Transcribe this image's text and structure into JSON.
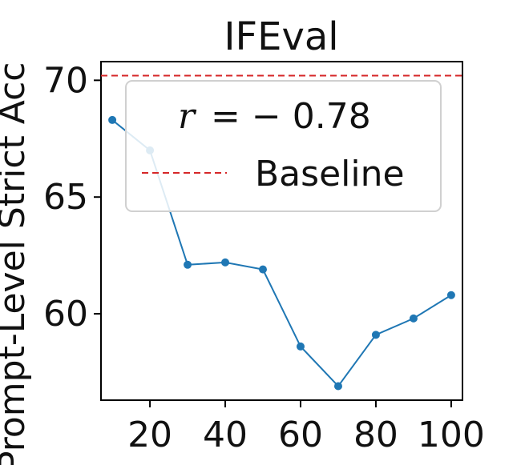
{
  "chart_data": {
    "type": "line",
    "title": "IFEval",
    "xlabel": "",
    "ylabel": "Prompt-Level Strict Acc",
    "x": [
      10,
      20,
      30,
      40,
      50,
      60,
      70,
      80,
      90,
      100
    ],
    "series": [
      {
        "values": [
          68.3,
          67.0,
          62.1,
          62.2,
          61.9,
          58.6,
          56.9,
          59.1,
          59.8,
          60.8
        ],
        "color": "#1f77b4"
      }
    ],
    "baseline": {
      "name": "Baseline",
      "value": 70.2,
      "color": "#d62728"
    },
    "annotation": {
      "r_label": "r",
      "r_value": "= − 0.78"
    },
    "xticks": [
      "20",
      "40",
      "60",
      "80",
      "100"
    ],
    "yticks": [
      "60",
      "65",
      "70"
    ],
    "xlim": [
      7,
      103
    ],
    "ylim": [
      56.3,
      70.8
    ],
    "legend_position": "upper center",
    "grid": false
  }
}
